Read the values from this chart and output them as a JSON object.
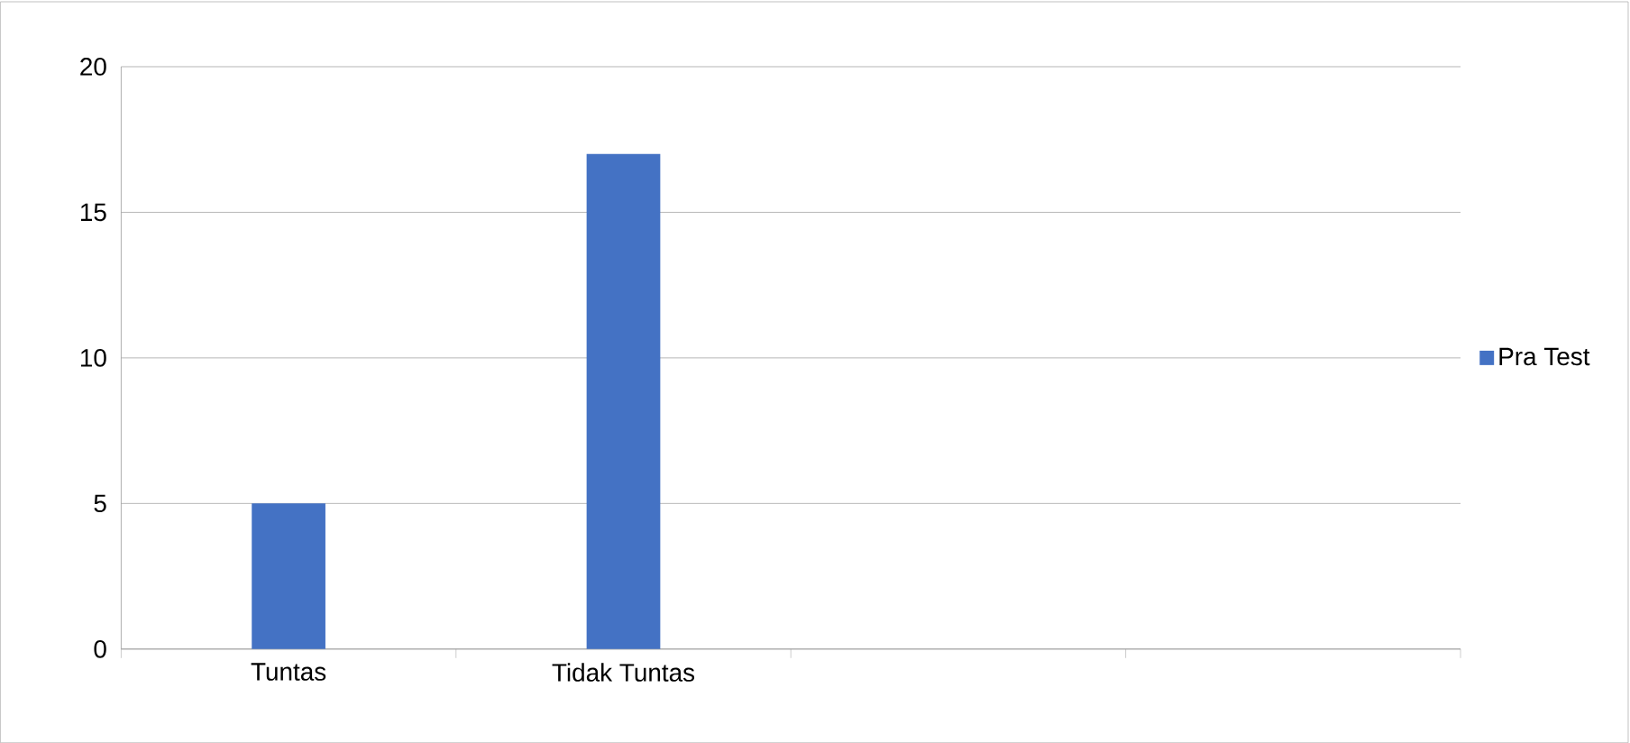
{
  "chart_data": {
    "type": "bar",
    "categories": [
      "Tuntas",
      "Tidak Tuntas",
      null,
      null
    ],
    "series": [
      {
        "name": "Pra Test",
        "color": "#4472c4",
        "values": [
          5,
          17,
          null,
          null
        ]
      }
    ],
    "ylim": [
      0,
      20
    ],
    "yticks": [
      0,
      5,
      10,
      15,
      20
    ],
    "grid": "y",
    "legend": "right"
  }
}
